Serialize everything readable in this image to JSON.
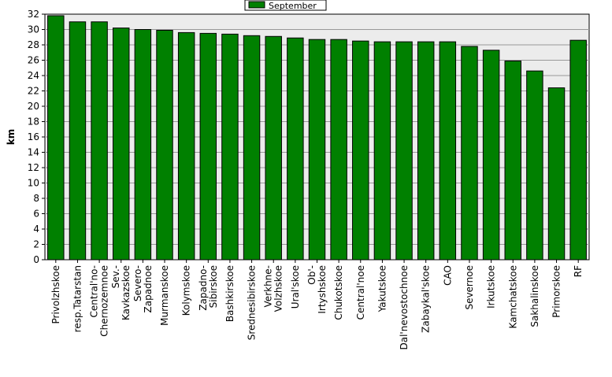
{
  "chart_data": {
    "type": "bar",
    "ylabel": "km",
    "ylim": [
      0,
      32
    ],
    "y_ticks": [
      0,
      2,
      4,
      6,
      8,
      10,
      12,
      14,
      16,
      18,
      20,
      22,
      24,
      26,
      28,
      30,
      32
    ],
    "grid": true,
    "legend_position": "top-center",
    "series": [
      {
        "name": "September",
        "color": "#008000",
        "values": [
          31.8,
          31.0,
          31.0,
          30.2,
          30.0,
          29.9,
          29.6,
          29.5,
          29.4,
          29.2,
          29.1,
          28.9,
          28.7,
          28.7,
          28.5,
          28.4,
          28.4,
          28.4,
          28.4,
          27.8,
          27.3,
          25.9,
          24.6,
          22.4,
          28.6
        ]
      }
    ],
    "categories": [
      "Privolzhskoe",
      "resp.Tatarstan",
      "Central'no-Chernozemnoe",
      "Sev.-Kavkazskoe",
      "Severo-Zapadnoe",
      "Murmanskoe",
      "Kolymskoe",
      "Zapadno-Sibirskoe",
      "Bashkirskoe",
      "Srednesibirskoe",
      "Verkhne-Volzhskoe",
      "Ural'skoe",
      "Ob'-Irtyshskoe",
      "Chukotskoe",
      "Central'noe",
      "Yakutskoe",
      "Dal'nevostochnoe",
      "Zabaykal'skoe",
      "CAO",
      "Severnoe",
      "Irkutskoe",
      "Kamchatskoe",
      "Sakhalinskoe",
      "Primorskoe",
      "RF"
    ],
    "category_label_lines": [
      [
        "Privolzhskoe"
      ],
      [
        "resp.Tatarstan"
      ],
      [
        "Central'no-",
        "Chernozemnoe"
      ],
      [
        "Sev.-",
        "Kavkazskoe"
      ],
      [
        "Severo-",
        "Zapadnoe"
      ],
      [
        "Murmanskoe"
      ],
      [
        "Kolymskoe"
      ],
      [
        "Zapadno-",
        "Sibirskoe"
      ],
      [
        "Bashkirskoe"
      ],
      [
        "Srednesibirskoe"
      ],
      [
        "Verkhne-",
        "Volzhskoe"
      ],
      [
        "Ural'skoe"
      ],
      [
        "Ob'-",
        "Irtyshskoe"
      ],
      [
        "Chukotskoe"
      ],
      [
        "Central'noe"
      ],
      [
        "Yakutskoe"
      ],
      [
        "Dal'nevostochnoe"
      ],
      [
        "Zabaykal'skoe"
      ],
      [
        "CAO"
      ],
      [
        "Severnoe"
      ],
      [
        "Irkutskoe"
      ],
      [
        "Kamchatskoe"
      ],
      [
        "Sakhalinskoe"
      ],
      [
        "Primorskoe"
      ],
      [
        "RF"
      ]
    ]
  }
}
